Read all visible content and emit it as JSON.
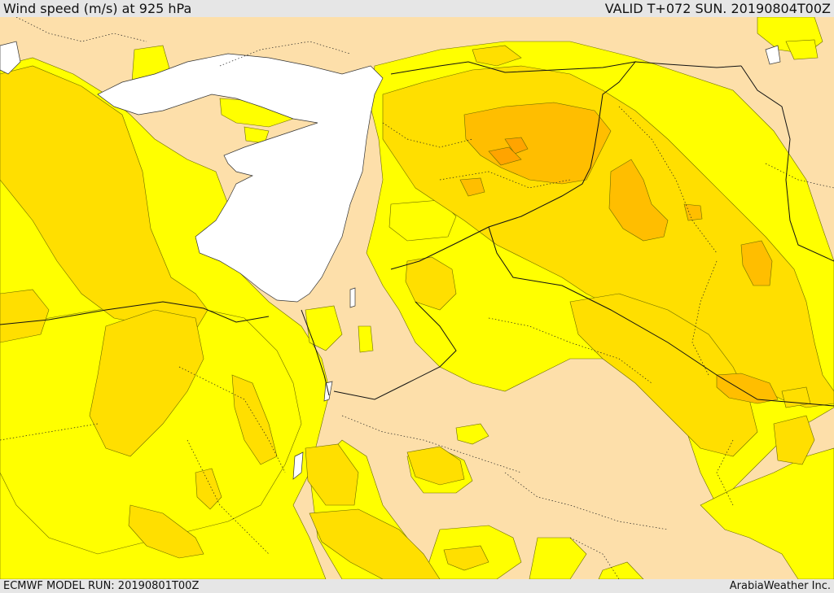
{
  "header": {
    "title": "Wind speed (m/s) at 925 hPa",
    "valid": "VALID T+072 SUN. 20190804T00Z"
  },
  "footer": {
    "model_run": "ECMWF MODEL RUN: 20190801T00Z",
    "credit": "ArabiaWeather Inc."
  },
  "map": {
    "field": "wind-speed",
    "colors": {
      "land_low": "#FDDFAA",
      "sea": "#FFFFFF",
      "band_1": "#FFFF00",
      "band_2": "#FFDF00",
      "band_3": "#FFBE00",
      "band_4": "#FFA400",
      "contour": "#555555",
      "border": "#000000"
    }
  }
}
